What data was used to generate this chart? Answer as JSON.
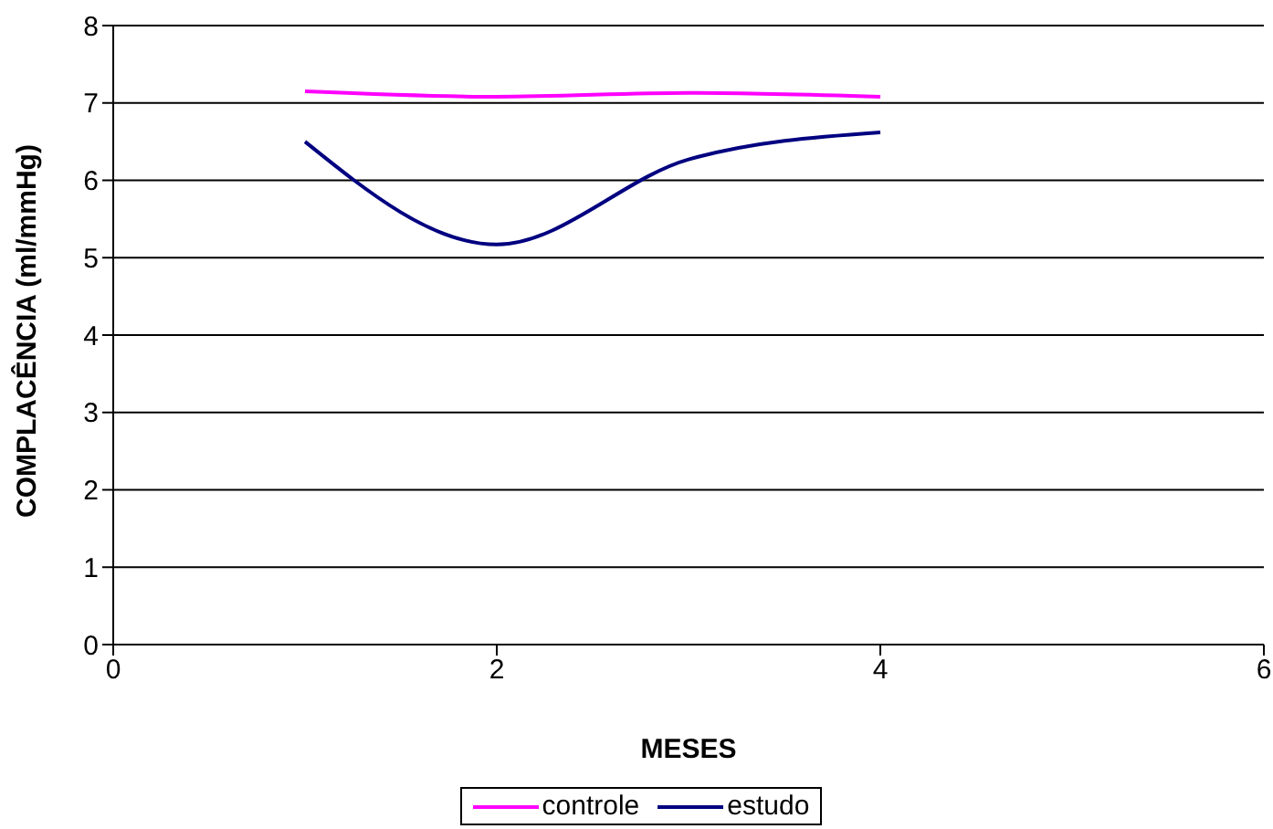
{
  "chart_data": {
    "type": "line",
    "xlabel": "MESES",
    "ylabel": "COMPLACÊNCIA (ml/mmHg)",
    "x": [
      1,
      2,
      3,
      4
    ],
    "series": [
      {
        "name": "estudo",
        "color": "#000080",
        "values": [
          6.5,
          5.17,
          6.27,
          6.62
        ]
      },
      {
        "name": "controle",
        "color": "#ff00ff",
        "values": [
          7.15,
          7.08,
          7.13,
          7.08
        ]
      }
    ],
    "xlim": [
      0,
      6
    ],
    "xticks": [
      0,
      2,
      4,
      6
    ],
    "ylim": [
      0,
      8
    ],
    "yticks": [
      0,
      1,
      2,
      3,
      4,
      5,
      6,
      7,
      8
    ],
    "grid": "y",
    "legend": "bottom",
    "marker": "none",
    "line_style": "solid"
  }
}
